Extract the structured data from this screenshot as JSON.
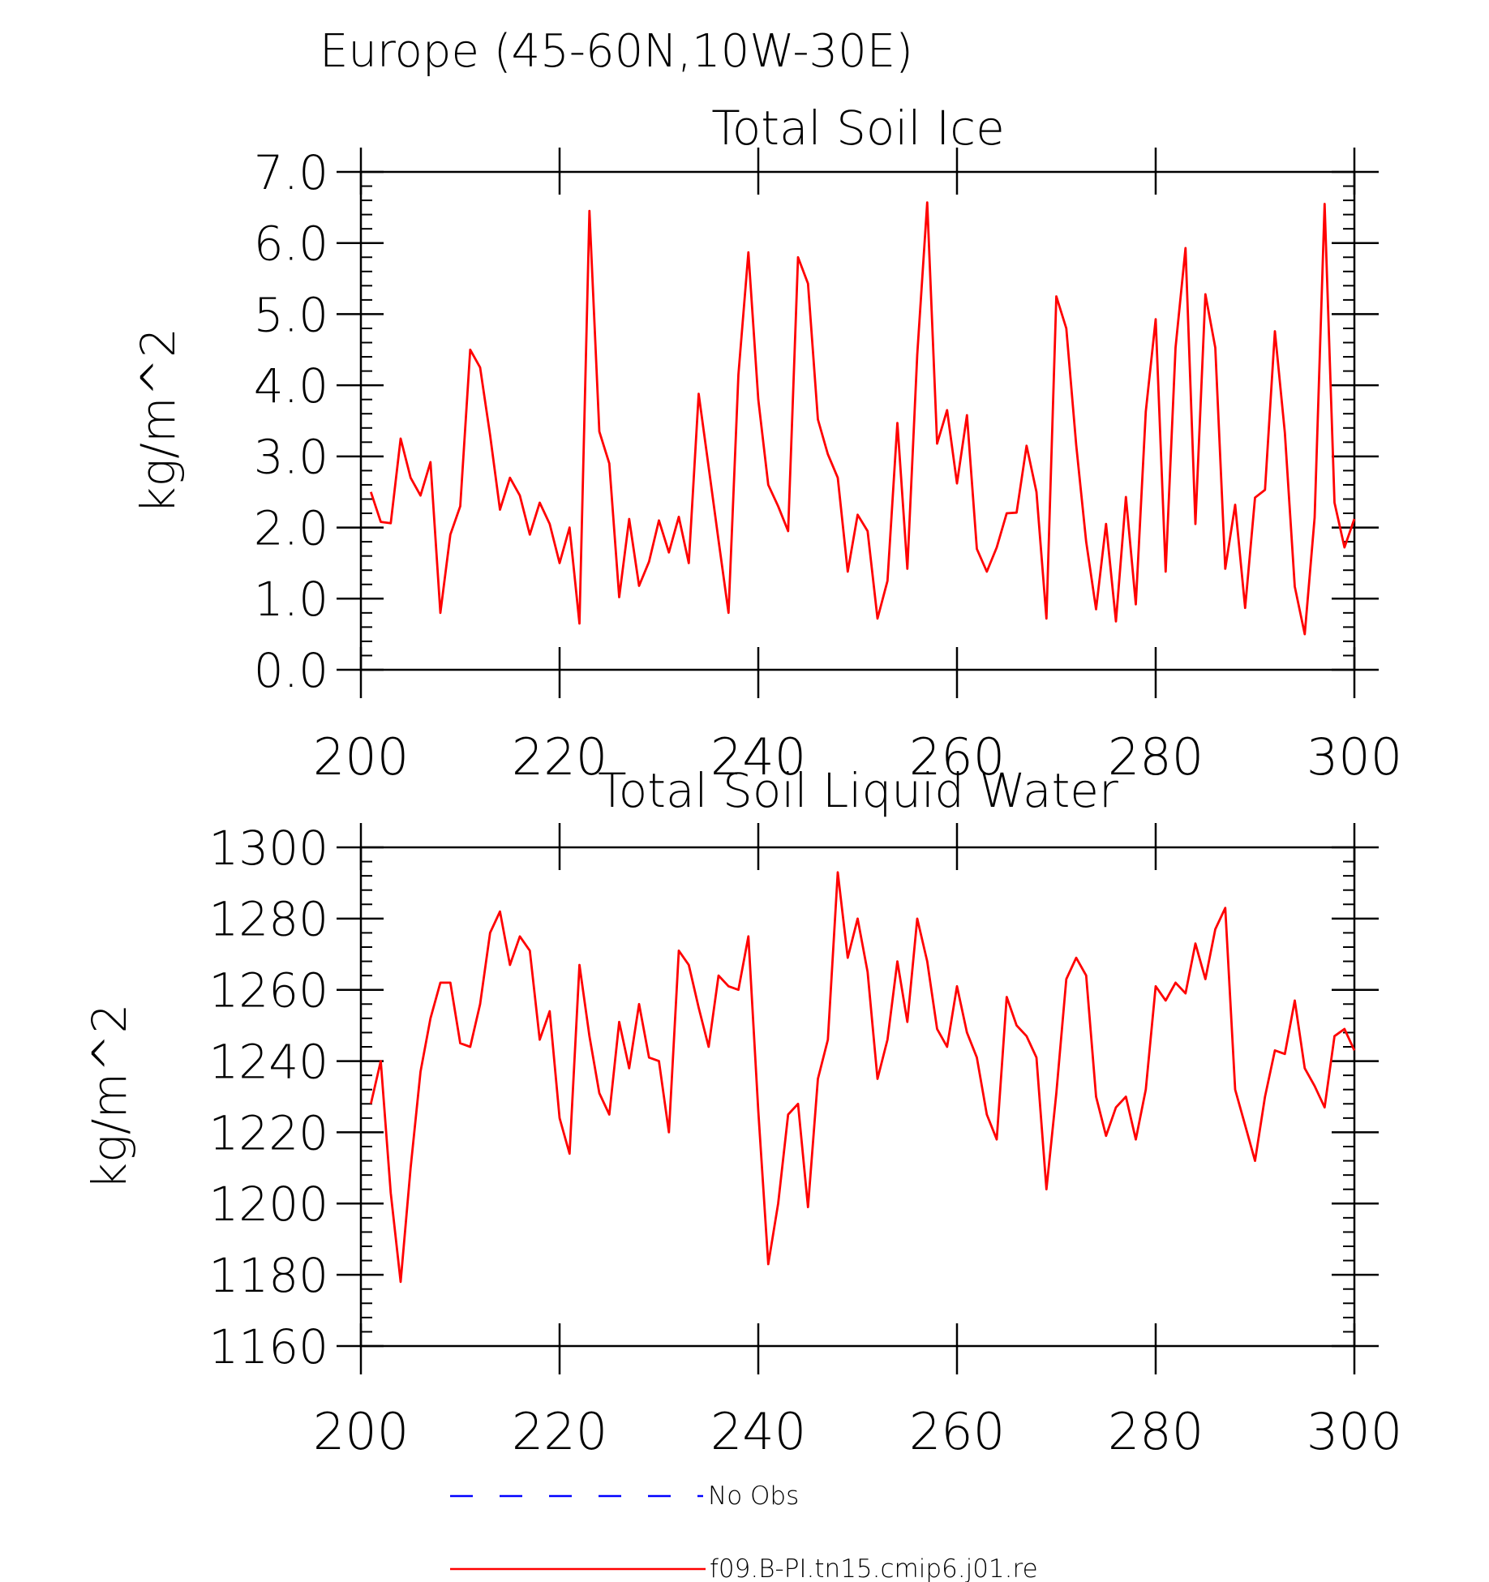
{
  "main_title": "Europe (45-60N,10W-30E)",
  "legend": [
    {
      "label": "No Obs",
      "color": "#0000ff",
      "style": "dashed"
    },
    {
      "label": "f09.B-PI.tn15.cmip6.j01.re",
      "color": "#ff0000",
      "style": "solid"
    }
  ],
  "chart_data": [
    {
      "type": "line",
      "title": "Total Soil Ice",
      "xlabel": "",
      "ylabel": "kg/m^2",
      "xlim": [
        200,
        300
      ],
      "ylim": [
        0,
        7
      ],
      "x_ticks": [
        "200",
        "220",
        "240",
        "260",
        "280",
        "300"
      ],
      "y_ticks": [
        "0.0",
        "1.0",
        "2.0",
        "3.0",
        "4.0",
        "5.0",
        "6.0",
        "7.0"
      ],
      "x_start": 201,
      "x_step": 1,
      "series": [
        {
          "name": "f09.B-PI.tn15.cmip6.j01.re",
          "color": "#ff0000",
          "values": [
            2.5,
            2.08,
            2.06,
            3.25,
            2.7,
            2.45,
            2.92,
            0.8,
            1.9,
            2.3,
            4.5,
            4.25,
            3.3,
            2.25,
            2.7,
            2.45,
            1.9,
            2.35,
            2.05,
            1.5,
            2.0,
            0.65,
            6.45,
            3.35,
            2.9,
            1.02,
            2.12,
            1.18,
            1.52,
            2.1,
            1.65,
            2.15,
            1.5,
            3.88,
            2.85,
            1.82,
            0.8,
            4.15,
            5.87,
            3.8,
            2.6,
            2.3,
            1.95,
            5.8,
            5.43,
            3.52,
            3.03,
            2.7,
            1.38,
            2.18,
            1.95,
            0.72,
            1.25,
            3.47,
            1.42,
            4.43,
            6.57,
            3.18,
            3.65,
            2.62,
            3.58,
            1.7,
            1.38,
            1.72,
            2.2,
            2.21,
            3.15,
            2.5,
            0.72,
            5.25,
            4.8,
            3.16,
            1.8,
            0.85,
            2.05,
            0.68,
            2.43,
            0.92,
            3.63,
            4.93,
            1.38,
            4.53,
            5.93,
            2.05,
            5.28,
            4.53,
            1.42,
            2.32,
            0.87,
            2.42,
            2.53,
            4.76,
            3.33,
            1.17,
            0.5,
            2.14,
            6.55,
            2.35,
            1.72,
            2.12
          ]
        }
      ]
    },
    {
      "type": "line",
      "title": "Total Soil Liquid Water",
      "xlabel": "",
      "ylabel": "kg/m^2",
      "xlim": [
        200,
        300
      ],
      "ylim": [
        1160,
        1300
      ],
      "x_ticks": [
        "200",
        "220",
        "240",
        "260",
        "280",
        "300"
      ],
      "y_ticks": [
        "1160",
        "1180",
        "1200",
        "1220",
        "1240",
        "1260",
        "1280",
        "1300"
      ],
      "x_start": 201,
      "x_step": 1,
      "series": [
        {
          "name": "f09.B-PI.tn15.cmip6.j01.re",
          "color": "#ff0000",
          "values": [
            1228,
            1240,
            1203,
            1178,
            1210,
            1237,
            1252,
            1262,
            1262,
            1245,
            1244,
            1256,
            1276,
            1282,
            1267,
            1275,
            1271,
            1246,
            1254,
            1224,
            1214,
            1267,
            1247,
            1231,
            1225,
            1251,
            1238,
            1256,
            1241,
            1240,
            1220,
            1271,
            1267,
            1255,
            1244,
            1264,
            1261,
            1260,
            1275,
            1226,
            1183,
            1200,
            1225,
            1228,
            1199,
            1235,
            1246,
            1293,
            1269,
            1280,
            1265,
            1235,
            1246,
            1268,
            1251,
            1280,
            1268,
            1249,
            1244,
            1261,
            1248,
            1241,
            1225,
            1218,
            1258,
            1250,
            1247,
            1241,
            1204,
            1231,
            1263,
            1269,
            1264,
            1230,
            1219,
            1227,
            1230,
            1218,
            1232,
            1261,
            1257,
            1262,
            1259,
            1273,
            1263,
            1277,
            1283,
            1232,
            1222,
            1212,
            1230,
            1243,
            1242,
            1257,
            1238,
            1233,
            1227,
            1247,
            1249,
            1243
          ]
        }
      ]
    }
  ]
}
